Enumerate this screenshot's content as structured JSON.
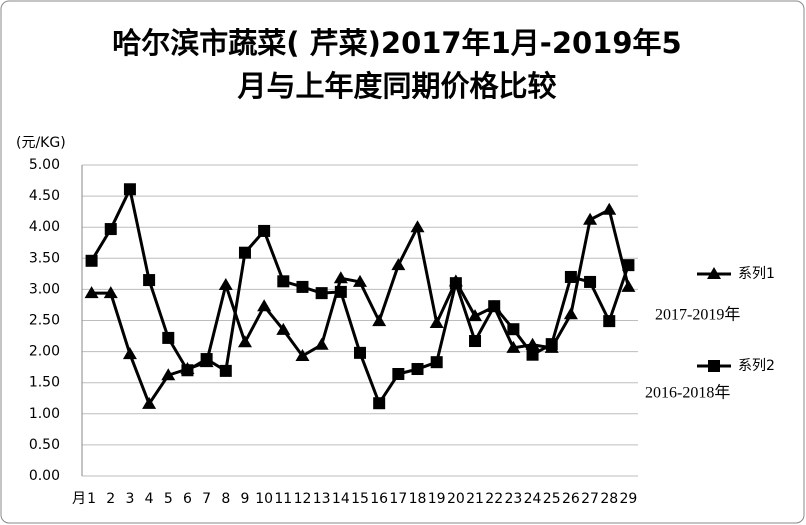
{
  "chart_data": {
    "type": "line",
    "title": [
      "哈尔滨市蔬菜( 芹菜)2017年1月-2019年5",
      "月与上年度同期价格比较"
    ],
    "y_label": "(元/KG)",
    "x_label": "月",
    "categories": [
      "1",
      "2",
      "3",
      "4",
      "5",
      "6",
      "7",
      "8",
      "9",
      "10",
      "11",
      "12",
      "13",
      "14",
      "15",
      "16",
      "17",
      "18",
      "19",
      "20",
      "21",
      "22",
      "23",
      "24",
      "25",
      "26",
      "27",
      "28",
      "29"
    ],
    "series": [
      {
        "name": "系列1",
        "color": "#000000",
        "marker": "triangle",
        "annotation": "2017-2019年",
        "values": [
          2.94,
          2.94,
          1.96,
          1.16,
          1.62,
          1.72,
          1.83,
          3.07,
          2.15,
          2.73,
          2.35,
          1.93,
          2.11,
          3.18,
          3.12,
          2.49,
          3.39,
          4.0,
          2.46,
          3.13,
          2.57,
          2.72,
          2.06,
          2.11,
          2.06,
          2.6,
          4.12,
          4.28,
          3.04
        ]
      },
      {
        "name": "系列2",
        "color": "#000000",
        "marker": "square",
        "annotation": "2016-2018年",
        "values": [
          3.46,
          3.97,
          4.61,
          3.15,
          2.22,
          1.7,
          1.88,
          1.69,
          3.59,
          3.94,
          3.13,
          3.04,
          2.94,
          2.96,
          1.98,
          1.17,
          1.64,
          1.72,
          1.83,
          3.1,
          2.17,
          2.73,
          2.36,
          1.95,
          2.12,
          3.2,
          3.12,
          2.49,
          3.39
        ]
      }
    ],
    "ylim": [
      0,
      5
    ],
    "yticks": [
      {
        "value": 0,
        "label": "0.00"
      },
      {
        "value": 0.5,
        "label": "0.50"
      },
      {
        "value": 1,
        "label": "1.00"
      },
      {
        "value": 1.5,
        "label": "1.50"
      },
      {
        "value": 2,
        "label": "2.00"
      },
      {
        "value": 2.5,
        "label": "2.50"
      },
      {
        "value": 3,
        "label": "3.00"
      },
      {
        "value": 3.5,
        "label": "3.50"
      },
      {
        "value": 4,
        "label": "4.00"
      },
      {
        "value": 4.5,
        "label": "4.50"
      },
      {
        "value": 5,
        "label": "5.00"
      }
    ],
    "grid": true,
    "legend": "right"
  }
}
